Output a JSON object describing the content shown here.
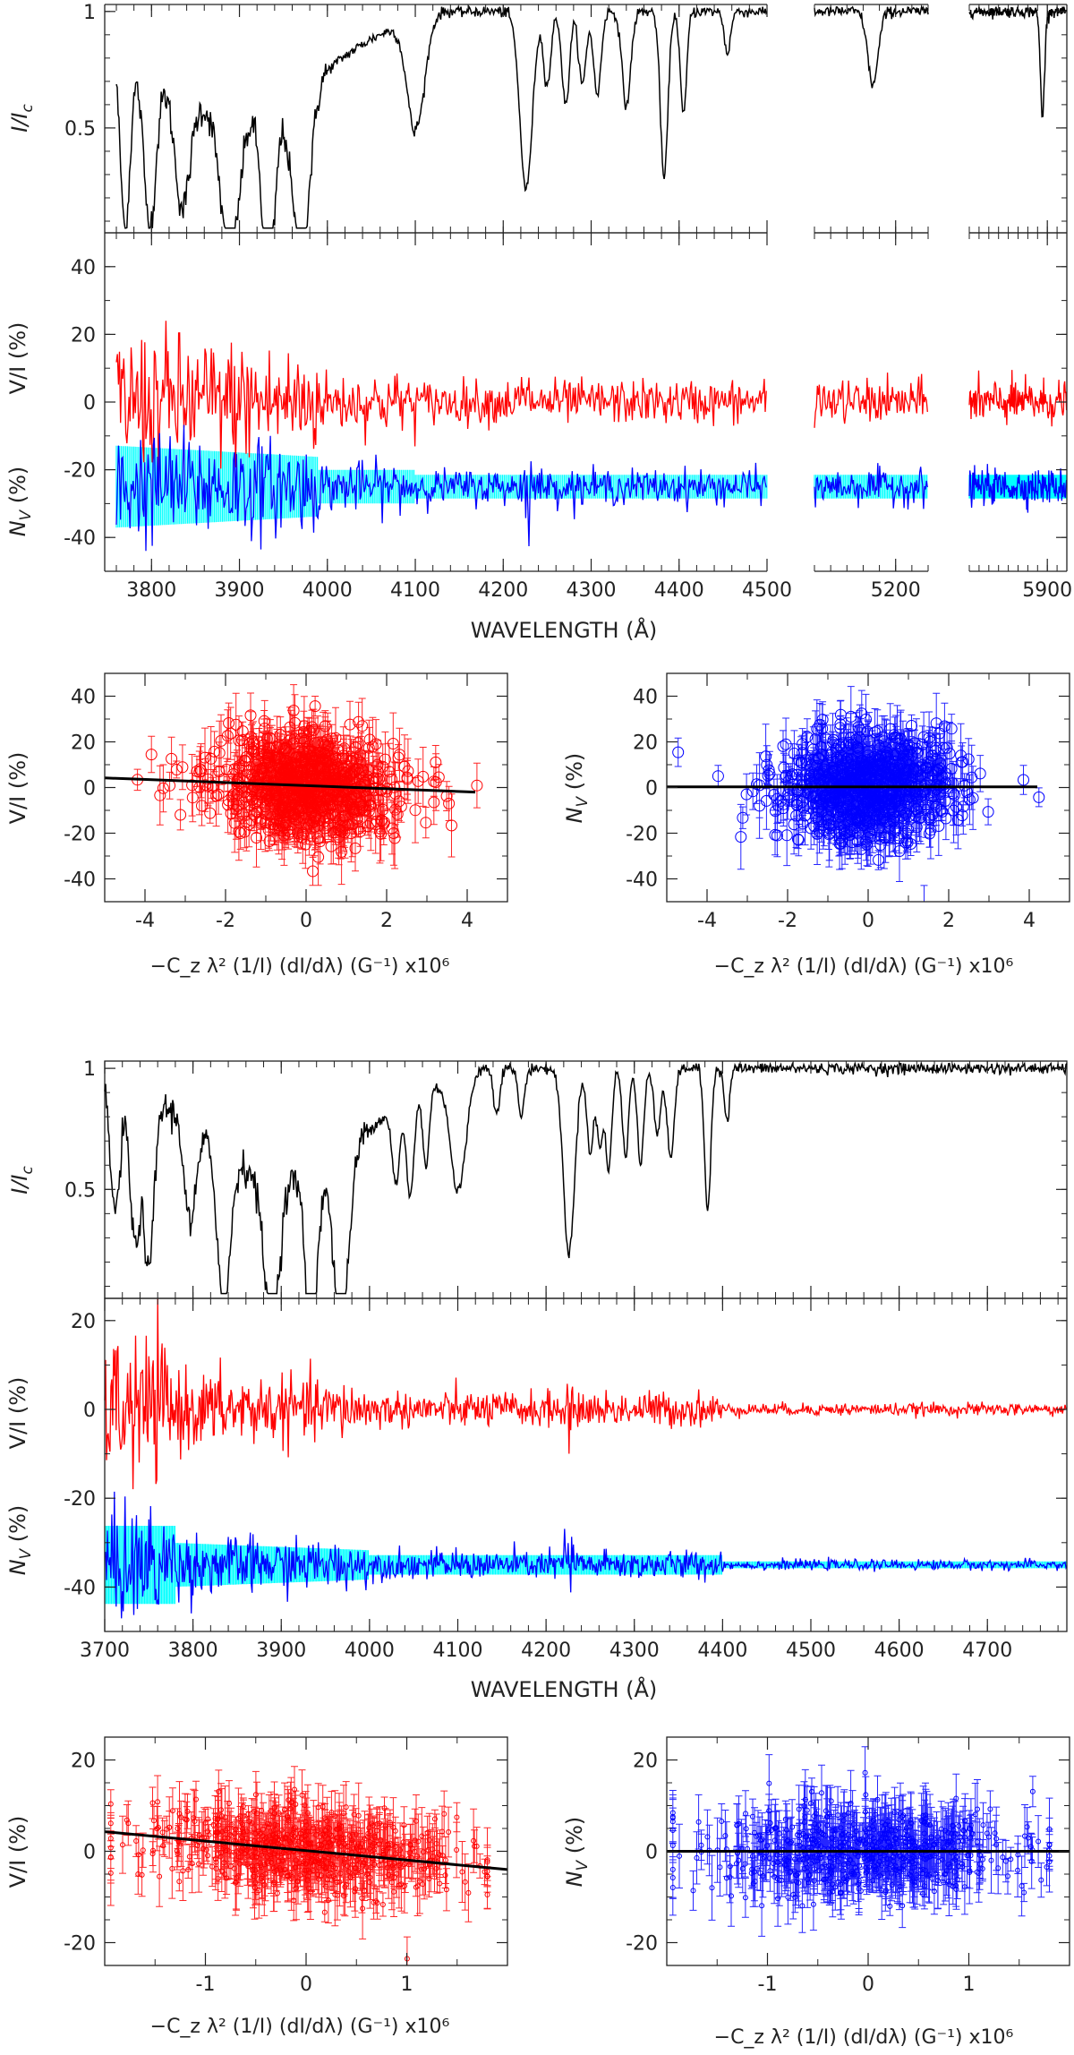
{
  "chart_data": [
    {
      "id": "fig1_intensity",
      "type": "line",
      "title": "",
      "ylabel_html": [
        "I/I",
        "c"
      ],
      "xlim": [
        3750,
        5940
      ],
      "ylim": [
        0.05,
        1.03
      ],
      "yticks": [
        "0.5",
        "1"
      ],
      "ytick_values": [
        0.5,
        1.0
      ],
      "axis_segments": [
        [
          3760,
          4500
        ],
        [
          5100,
          5240
        ],
        [
          5740,
          5940
        ]
      ],
      "series": [
        {
          "name": "I/Ic",
          "color": "#000000"
        }
      ],
      "features": [
        {
          "x": 3770,
          "depth": 0.85,
          "width": 8
        },
        {
          "x": 3798,
          "depth": 0.75,
          "width": 10
        },
        {
          "x": 3835,
          "depth": 0.55,
          "width": 12
        },
        {
          "x": 3889,
          "depth": 0.7,
          "width": 14
        },
        {
          "x": 3933,
          "depth": 0.85,
          "width": 10
        },
        {
          "x": 3970,
          "depth": 0.8,
          "width": 14
        },
        {
          "x": 4101,
          "depth": 0.55,
          "width": 14
        },
        {
          "x": 4226,
          "depth": 0.85,
          "width": 10
        },
        {
          "x": 4250,
          "depth": 0.35,
          "width": 6
        },
        {
          "x": 4271,
          "depth": 0.45,
          "width": 6
        },
        {
          "x": 4290,
          "depth": 0.35,
          "width": 6
        },
        {
          "x": 4307,
          "depth": 0.4,
          "width": 6
        },
        {
          "x": 4340,
          "depth": 0.45,
          "width": 7
        },
        {
          "x": 4383,
          "depth": 0.8,
          "width": 6
        },
        {
          "x": 4405,
          "depth": 0.5,
          "width": 5
        },
        {
          "x": 4455,
          "depth": 0.2,
          "width": 5
        },
        {
          "x": 5172,
          "depth": 0.35,
          "width": 9
        },
        {
          "x": 5890,
          "depth": 0.5,
          "width": 6
        }
      ]
    },
    {
      "id": "fig1_stokes",
      "type": "line",
      "xlim": [
        3750,
        5940
      ],
      "ylim": [
        -50,
        50
      ],
      "xlabel": "WAVELENGTH (Å)",
      "ylabel_red": "V/I (%)",
      "ylabel_blue_html": [
        "N",
        "V",
        " (%)"
      ],
      "yticks": [
        "-40",
        "-20",
        "0",
        "20",
        "40"
      ],
      "ytick_values": [
        -40,
        -20,
        0,
        20,
        40
      ],
      "xticks": [
        "3800",
        "3900",
        "4000",
        "4100",
        "4200",
        "4300",
        "4400",
        "4500",
        "5200",
        "5900"
      ],
      "xtick_values": [
        3800,
        3900,
        4000,
        4100,
        4200,
        4300,
        4400,
        4500,
        5200,
        5900
      ],
      "axis_segments": [
        [
          3760,
          4500
        ],
        [
          5100,
          5240
        ],
        [
          5740,
          5940
        ]
      ],
      "series": [
        {
          "name": "V/I",
          "color": "#ff0000",
          "offset": 0
        },
        {
          "name": "N_V",
          "color": "#0000ff",
          "offset": -25
        },
        {
          "name": "error band",
          "color": "#00ffff",
          "offset": -25
        }
      ]
    },
    {
      "id": "fig1_reg_v",
      "type": "scatter",
      "xlim": [
        -5,
        5
      ],
      "ylim": [
        -50,
        50
      ],
      "xticks": [
        "-4",
        "-2",
        "0",
        "2",
        "4"
      ],
      "xtick_values": [
        -4,
        -2,
        0,
        2,
        4
      ],
      "yticks": [
        "-40",
        "-20",
        "0",
        "20",
        "40"
      ],
      "ytick_values": [
        -40,
        -20,
        0,
        20,
        40
      ],
      "xlabel": "−C_z λ² (1/I) (dI/dλ) (G⁻¹) x10⁶",
      "ylabel": "V/I (%)",
      "color": "#ff0000",
      "marker": "circle",
      "fit_line": [
        [
          -5,
          4.2
        ],
        [
          4.2,
          -2.0
        ]
      ]
    },
    {
      "id": "fig1_reg_n",
      "type": "scatter",
      "xlim": [
        -5,
        5
      ],
      "ylim": [
        -50,
        50
      ],
      "xticks": [
        "-4",
        "-2",
        "0",
        "2",
        "4"
      ],
      "xtick_values": [
        -4,
        -2,
        0,
        2,
        4
      ],
      "yticks": [
        "-40",
        "-20",
        "0",
        "20",
        "40"
      ],
      "ytick_values": [
        -40,
        -20,
        0,
        20,
        40
      ],
      "xlabel": "−C_z λ² (1/I) (dI/dλ) (G⁻¹) x10⁶",
      "ylabel_html": [
        "N",
        "V",
        " (%)"
      ],
      "color": "#0000ff",
      "marker": "circle",
      "fit_line": [
        [
          -5,
          0.3
        ],
        [
          4.2,
          0.3
        ]
      ]
    },
    {
      "id": "fig2_intensity",
      "type": "line",
      "xlim": [
        3700,
        4790
      ],
      "ylim": [
        0.05,
        1.03
      ],
      "yticks": [
        "0.5",
        "1"
      ],
      "ytick_values": [
        0.5,
        1.0
      ],
      "ylabel_html": [
        "I/I",
        "c"
      ],
      "series": [
        {
          "name": "I/Ic",
          "color": "#000000"
        }
      ],
      "features": [
        {
          "x": 3712,
          "depth": 0.6,
          "width": 8
        },
        {
          "x": 3734,
          "depth": 0.7,
          "width": 8
        },
        {
          "x": 3750,
          "depth": 0.8,
          "width": 8
        },
        {
          "x": 3797,
          "depth": 0.45,
          "width": 9
        },
        {
          "x": 3835,
          "depth": 0.7,
          "width": 10
        },
        {
          "x": 3889,
          "depth": 0.7,
          "width": 12
        },
        {
          "x": 3934,
          "depth": 0.85,
          "width": 9
        },
        {
          "x": 3968,
          "depth": 0.85,
          "width": 12
        },
        {
          "x": 4030,
          "depth": 0.35,
          "width": 6
        },
        {
          "x": 4046,
          "depth": 0.45,
          "width": 6
        },
        {
          "x": 4064,
          "depth": 0.35,
          "width": 5
        },
        {
          "x": 4101,
          "depth": 0.55,
          "width": 12
        },
        {
          "x": 4144,
          "depth": 0.2,
          "width": 5
        },
        {
          "x": 4172,
          "depth": 0.22,
          "width": 5
        },
        {
          "x": 4226,
          "depth": 0.85,
          "width": 9
        },
        {
          "x": 4250,
          "depth": 0.4,
          "width": 5
        },
        {
          "x": 4261,
          "depth": 0.35,
          "width": 5
        },
        {
          "x": 4271,
          "depth": 0.45,
          "width": 5
        },
        {
          "x": 4290,
          "depth": 0.4,
          "width": 5
        },
        {
          "x": 4307,
          "depth": 0.45,
          "width": 5
        },
        {
          "x": 4326,
          "depth": 0.3,
          "width": 5
        },
        {
          "x": 4341,
          "depth": 0.4,
          "width": 6
        },
        {
          "x": 4383,
          "depth": 0.65,
          "width": 5
        },
        {
          "x": 4405,
          "depth": 0.25,
          "width": 4
        }
      ]
    },
    {
      "id": "fig2_stokes",
      "type": "line",
      "xlim": [
        3700,
        4790
      ],
      "ylim": [
        -50,
        25
      ],
      "xlabel": "WAVELENGTH (Å)",
      "ylabel_red": "V/I (%)",
      "ylabel_blue_html": [
        "N",
        "V",
        " (%)"
      ],
      "yticks": [
        "-40",
        "-20",
        "0",
        "20"
      ],
      "ytick_values": [
        -40,
        -20,
        0,
        20
      ],
      "xticks": [
        "3700",
        "3800",
        "3900",
        "4000",
        "4100",
        "4200",
        "4300",
        "4400",
        "4500",
        "4600",
        "4700"
      ],
      "xtick_values": [
        3700,
        3800,
        3900,
        4000,
        4100,
        4200,
        4300,
        4400,
        4500,
        4600,
        4700
      ],
      "series": [
        {
          "name": "V/I",
          "color": "#ff0000",
          "offset": 0
        },
        {
          "name": "N_V",
          "color": "#0000ff",
          "offset": -35
        },
        {
          "name": "error band",
          "color": "#00ffff",
          "offset": -35
        }
      ]
    },
    {
      "id": "fig2_reg_v",
      "type": "scatter",
      "xlim": [
        -2,
        2
      ],
      "ylim": [
        -25,
        25
      ],
      "xticks": [
        "-1",
        "0",
        "1"
      ],
      "xtick_values": [
        -1,
        0,
        1
      ],
      "yticks": [
        "-20",
        "0",
        "20"
      ],
      "ytick_values": [
        -20,
        0,
        20
      ],
      "xlabel": "−C_z λ² (1/I) (dI/dλ) (G⁻¹) x10⁶",
      "ylabel": "V/I (%)",
      "color": "#ff0000",
      "marker": "small-circle",
      "fit_line": [
        [
          -2,
          4.3
        ],
        [
          2,
          -4.0
        ]
      ]
    },
    {
      "id": "fig2_reg_n",
      "type": "scatter",
      "xlim": [
        -2,
        2
      ],
      "ylim": [
        -25,
        25
      ],
      "xticks": [
        "-1",
        "0",
        "1"
      ],
      "xtick_values": [
        -1,
        0,
        1
      ],
      "yticks": [
        "-20",
        "0",
        "20"
      ],
      "ytick_values": [
        -20,
        0,
        20
      ],
      "xlabel": "−C_z λ² (1/I) (dI/dλ) (G⁻¹) x10⁶",
      "ylabel_html": [
        "N",
        "V",
        " (%)"
      ],
      "color": "#0000ff",
      "marker": "small-circle",
      "fit_line": [
        [
          -2,
          0
        ],
        [
          2,
          0
        ]
      ]
    }
  ]
}
